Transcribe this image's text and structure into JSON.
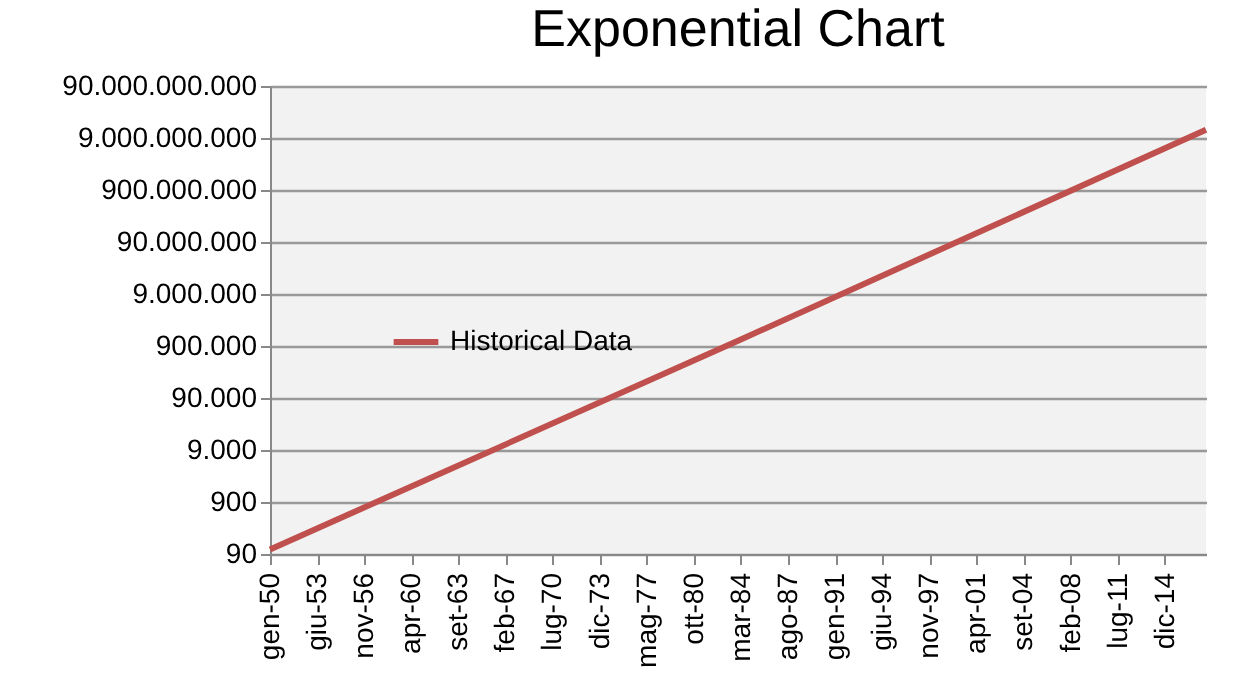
{
  "chart_data": {
    "type": "line",
    "title": "Exponential Chart",
    "series": [
      {
        "name": "Historical Data",
        "color": "#c0504d",
        "x": [
          "1950-01",
          "1984-03",
          "2017-12"
        ],
        "values": [
          110,
          1200000,
          13000000000
        ]
      }
    ],
    "xlim": [
      "1950-01",
      "2017-12"
    ],
    "xticks": [
      {
        "value": "1950-01",
        "label": "gen-50"
      },
      {
        "value": "1953-06",
        "label": "giu-53"
      },
      {
        "value": "1956-11",
        "label": "nov-56"
      },
      {
        "value": "1960-04",
        "label": "apr-60"
      },
      {
        "value": "1963-09",
        "label": "set-63"
      },
      {
        "value": "1967-02",
        "label": "feb-67"
      },
      {
        "value": "1970-07",
        "label": "lug-70"
      },
      {
        "value": "1973-12",
        "label": "dic-73"
      },
      {
        "value": "1977-05",
        "label": "mag-77"
      },
      {
        "value": "1980-10",
        "label": "ott-80"
      },
      {
        "value": "1984-03",
        "label": "mar-84"
      },
      {
        "value": "1987-08",
        "label": "ago-87"
      },
      {
        "value": "1991-01",
        "label": "gen-91"
      },
      {
        "value": "1994-06",
        "label": "giu-94"
      },
      {
        "value": "1997-11",
        "label": "nov-97"
      },
      {
        "value": "2001-04",
        "label": "apr-01"
      },
      {
        "value": "2004-09",
        "label": "set-04"
      },
      {
        "value": "2008-02",
        "label": "feb-08"
      },
      {
        "value": "2011-07",
        "label": "lug-11"
      },
      {
        "value": "2014-12",
        "label": "dic-14"
      }
    ],
    "ylim": [
      90,
      90000000000
    ],
    "yticks": [
      {
        "value": 90,
        "label": "90"
      },
      {
        "value": 900,
        "label": "900"
      },
      {
        "value": 9000,
        "label": "9.000"
      },
      {
        "value": 90000,
        "label": "90.000"
      },
      {
        "value": 900000,
        "label": "900.000"
      },
      {
        "value": 9000000,
        "label": "9.000.000"
      },
      {
        "value": 90000000,
        "label": "90.000.000"
      },
      {
        "value": 900000000,
        "label": "900.000.000"
      },
      {
        "value": 9000000000,
        "label": "9.000.000.000"
      },
      {
        "value": 90000000000,
        "label": "90.000.000.000"
      }
    ],
    "log": true,
    "grid": "y",
    "legend": "left",
    "marker": "none",
    "line_style": "solid"
  }
}
